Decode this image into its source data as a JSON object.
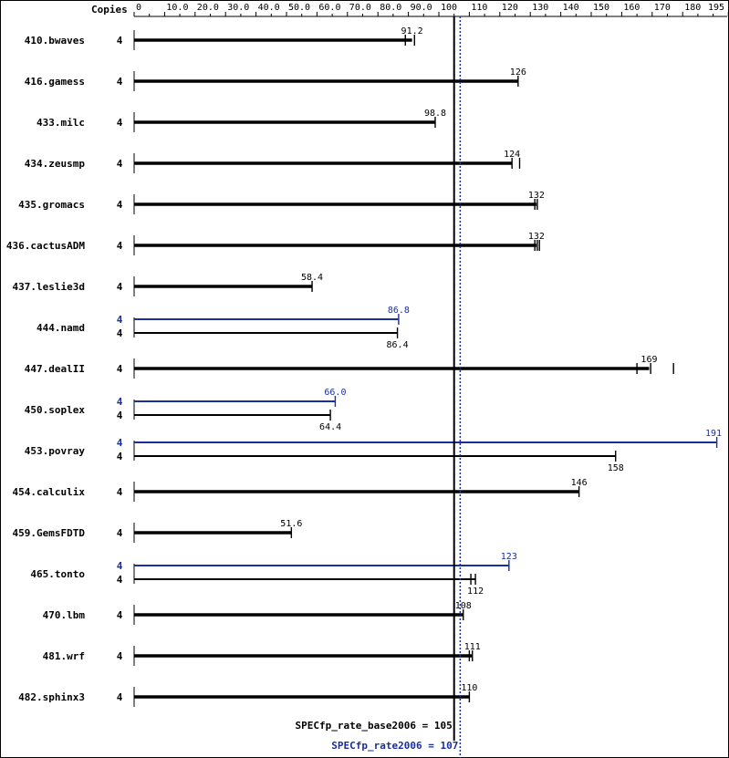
{
  "chart_data": {
    "type": "bar",
    "copies_header": "Copies",
    "x_ticks": [
      "0",
      "10.0",
      "20.0",
      "30.0",
      "40.0",
      "50.0",
      "60.0",
      "70.0",
      "80.0",
      "90.0",
      "100",
      "110",
      "120",
      "130",
      "140",
      "150",
      "160",
      "170",
      "180",
      "195"
    ],
    "xlim": [
      0,
      195
    ],
    "colors": {
      "base": "#000000",
      "peak": "#1a2e9c"
    },
    "benchmarks": [
      {
        "name": "410.bwaves",
        "base": {
          "copies": "4",
          "value": 91.2,
          "label": "91.2",
          "ticks": [
            89,
            92
          ]
        }
      },
      {
        "name": "416.gamess",
        "base": {
          "copies": "4",
          "value": 126,
          "label": "126",
          "ticks": [
            126
          ]
        }
      },
      {
        "name": "433.milc",
        "base": {
          "copies": "4",
          "value": 98.8,
          "label": "98.8",
          "ticks": [
            98.8
          ]
        }
      },
      {
        "name": "434.zeusmp",
        "base": {
          "copies": "4",
          "value": 124,
          "label": "124",
          "ticks": [
            124,
            126.5
          ]
        }
      },
      {
        "name": "435.gromacs",
        "base": {
          "copies": "4",
          "value": 132,
          "label": "132",
          "ticks": [
            131.5,
            132.3
          ]
        }
      },
      {
        "name": "436.cactusADM",
        "base": {
          "copies": "4",
          "value": 132,
          "label": "132",
          "ticks": [
            131.5,
            132.3,
            133
          ]
        }
      },
      {
        "name": "437.leslie3d",
        "base": {
          "copies": "4",
          "value": 58.4,
          "label": "58.4",
          "ticks": [
            58.4
          ]
        }
      },
      {
        "name": "444.namd",
        "peak": {
          "copies": "4",
          "value": 86.8,
          "label": "86.8",
          "ticks": [
            86.8
          ]
        },
        "base": {
          "copies": "4",
          "value": 86.4,
          "label": "86.4",
          "ticks": [
            86.4
          ]
        }
      },
      {
        "name": "447.dealII",
        "base": {
          "copies": "4",
          "value": 169,
          "label": "169",
          "ticks": [
            165,
            169.5,
            177
          ]
        }
      },
      {
        "name": "450.soplex",
        "peak": {
          "copies": "4",
          "value": 66.0,
          "label": "66.0",
          "ticks": [
            66.0
          ]
        },
        "base": {
          "copies": "4",
          "value": 64.4,
          "label": "64.4",
          "ticks": [
            64.4
          ]
        }
      },
      {
        "name": "453.povray",
        "peak": {
          "copies": "4",
          "value": 191,
          "label": "191",
          "ticks": [
            191.2
          ]
        },
        "base": {
          "copies": "4",
          "value": 158,
          "label": "158",
          "ticks": [
            158
          ]
        }
      },
      {
        "name": "454.calculix",
        "base": {
          "copies": "4",
          "value": 146,
          "label": "146",
          "ticks": [
            146
          ]
        }
      },
      {
        "name": "459.GemsFDTD",
        "base": {
          "copies": "4",
          "value": 51.6,
          "label": "51.6",
          "ticks": [
            51.6
          ]
        }
      },
      {
        "name": "465.tonto",
        "peak": {
          "copies": "4",
          "value": 123,
          "label": "123",
          "ticks": [
            123
          ]
        },
        "base": {
          "copies": "4",
          "value": 112,
          "label": "112",
          "ticks": [
            110.5,
            112
          ]
        }
      },
      {
        "name": "470.lbm",
        "base": {
          "copies": "4",
          "value": 108,
          "label": "108",
          "ticks": [
            108
          ]
        }
      },
      {
        "name": "481.wrf",
        "base": {
          "copies": "4",
          "value": 111,
          "label": "111",
          "ticks": [
            110,
            111
          ]
        }
      },
      {
        "name": "482.sphinx3",
        "base": {
          "copies": "4",
          "value": 110,
          "label": "110",
          "ticks": [
            110
          ]
        }
      }
    ],
    "reference_lines": {
      "base": {
        "value": 105,
        "label": "SPECfp_rate_base2006 = 105"
      },
      "peak": {
        "value": 107,
        "label": "SPECfp_rate2006 = 107"
      }
    }
  }
}
